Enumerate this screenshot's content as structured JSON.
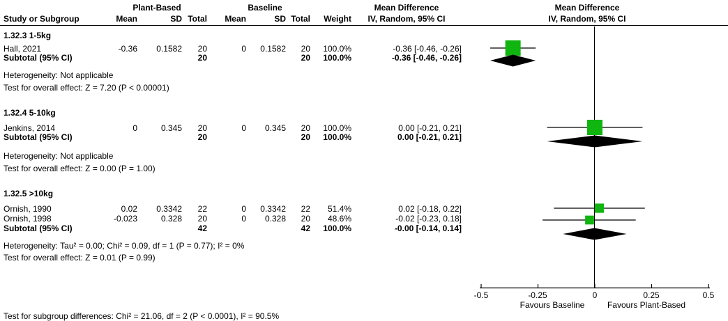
{
  "header": {
    "group1": "Plant-Based",
    "group2": "Baseline",
    "col_study": "Study or Subgroup",
    "col_mean": "Mean",
    "col_sd": "SD",
    "col_total": "Total",
    "col_weight": "Weight",
    "md_label": "Mean Difference",
    "md_sub": "IV, Random, 95% CI"
  },
  "colors": {
    "square_green": "#10b510",
    "diamond_black": "#000000",
    "line_black": "#000000"
  },
  "axis": {
    "tick_labels": [
      "-0.5",
      "-0.25",
      "0",
      "0.25",
      "0.5"
    ],
    "favours_left": "Favours Baseline",
    "favours_right": "Favours Plant-Based"
  },
  "footer": {
    "subgroup_test": "Test for subgroup differences: Chi² = 21.06, df = 2 (P < 0.0001), I² = 90.5%"
  },
  "sections": [
    {
      "label": "1.32.3 1-5kg",
      "studies": [
        {
          "name": "Hall, 2021",
          "mean1": "-0.36",
          "sd1": "0.1582",
          "total1": "20",
          "mean2": "0",
          "sd2": "0.1582",
          "total2": "20",
          "weight": "100.0%",
          "ci_text": "-0.36 [-0.46, -0.26]",
          "est": -0.36,
          "lo": -0.46,
          "hi": -0.26,
          "weight_pct": 100.0
        }
      ],
      "subtotal": {
        "label": "Subtotal (95% CI)",
        "total1": "20",
        "total2": "20",
        "weight": "100.0%",
        "ci_text": "-0.36 [-0.46, -0.26]",
        "est": -0.36,
        "lo": -0.46,
        "hi": -0.26
      },
      "heterogeneity": "Heterogeneity: Not applicable",
      "overall": "Test for overall effect: Z = 7.20 (P < 0.00001)"
    },
    {
      "label": "1.32.4 5-10kg",
      "studies": [
        {
          "name": "Jenkins, 2014",
          "mean1": "0",
          "sd1": "0.345",
          "total1": "20",
          "mean2": "0",
          "sd2": "0.345",
          "total2": "20",
          "weight": "100.0%",
          "ci_text": "0.00 [-0.21, 0.21]",
          "est": 0.0,
          "lo": -0.21,
          "hi": 0.21,
          "weight_pct": 100.0
        }
      ],
      "subtotal": {
        "label": "Subtotal (95% CI)",
        "total1": "20",
        "total2": "20",
        "weight": "100.0%",
        "ci_text": "0.00 [-0.21, 0.21]",
        "est": 0.0,
        "lo": -0.21,
        "hi": 0.21
      },
      "heterogeneity": "Heterogeneity: Not applicable",
      "overall": "Test for overall effect: Z = 0.00 (P = 1.00)"
    },
    {
      "label": "1.32.5 >10kg",
      "studies": [
        {
          "name": "Ornish, 1990",
          "mean1": "0.02",
          "sd1": "0.3342",
          "total1": "22",
          "mean2": "0",
          "sd2": "0.3342",
          "total2": "22",
          "weight": "51.4%",
          "ci_text": "0.02 [-0.18, 0.22]",
          "est": 0.02,
          "lo": -0.18,
          "hi": 0.22,
          "weight_pct": 51.4
        },
        {
          "name": "Ornish, 1998",
          "mean1": "-0.023",
          "sd1": "0.328",
          "total1": "20",
          "mean2": "0",
          "sd2": "0.328",
          "total2": "20",
          "weight": "48.6%",
          "ci_text": "-0.02 [-0.23, 0.18]",
          "est": -0.023,
          "lo": -0.23,
          "hi": 0.18,
          "weight_pct": 48.6
        }
      ],
      "subtotal": {
        "label": "Subtotal (95% CI)",
        "total1": "42",
        "total2": "42",
        "weight": "100.0%",
        "ci_text": "-0.00 [-0.14, 0.14]",
        "est": -0.002,
        "lo": -0.14,
        "hi": 0.14
      },
      "heterogeneity": "Heterogeneity: Tau² = 0.00; Chi² = 0.09, df = 1 (P = 0.77); I² = 0%",
      "overall": "Test for overall effect: Z = 0.01 (P = 0.99)"
    }
  ],
  "chart_data": {
    "type": "scatter",
    "variant": "forest-plot-meta-analysis",
    "effect_measure": "Mean Difference, IV, Random, 95% CI",
    "x_axis": {
      "range": [
        -0.5,
        0.5
      ],
      "ticks": [
        -0.5,
        -0.25,
        0,
        0.25,
        0.5
      ],
      "label_left": "Favours Baseline",
      "label_right": "Favours Plant-Based",
      "zero_line": true
    },
    "series": [
      {
        "group": "1.32.3 1-5kg",
        "points": [
          {
            "study": "Hall, 2021",
            "md": -0.36,
            "ci": [
              -0.46,
              -0.26
            ],
            "weight_pct": 100.0
          }
        ],
        "subtotal": {
          "md": -0.36,
          "ci": [
            -0.46,
            -0.26
          ]
        }
      },
      {
        "group": "1.32.4 5-10kg",
        "points": [
          {
            "study": "Jenkins, 2014",
            "md": 0.0,
            "ci": [
              -0.21,
              0.21
            ],
            "weight_pct": 100.0
          }
        ],
        "subtotal": {
          "md": 0.0,
          "ci": [
            -0.21,
            0.21
          ]
        }
      },
      {
        "group": "1.32.5 >10kg",
        "points": [
          {
            "study": "Ornish, 1990",
            "md": 0.02,
            "ci": [
              -0.18,
              0.22
            ],
            "weight_pct": 51.4
          },
          {
            "study": "Ornish, 1998",
            "md": -0.02,
            "ci": [
              -0.23,
              0.18
            ],
            "weight_pct": 48.6
          }
        ],
        "subtotal": {
          "md": 0.0,
          "ci": [
            -0.14,
            0.14
          ]
        }
      }
    ]
  }
}
